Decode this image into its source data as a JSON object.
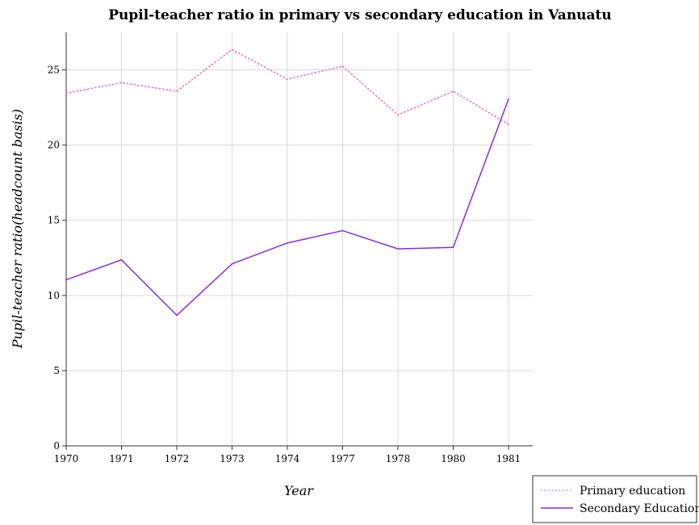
{
  "chart_data": {
    "type": "line",
    "title": "Pupil-teacher ratio in primary vs secondary education in Vanuatu",
    "xlabel": "Year",
    "ylabel": "Pupil-teacher ratio(headcount basis)",
    "categories": [
      "1970",
      "1971",
      "1972",
      "1973",
      "1974",
      "1977",
      "1978",
      "1980",
      "1981"
    ],
    "ylim": [
      0,
      27.5
    ],
    "yticks": [
      0,
      5,
      10,
      15,
      20,
      25
    ],
    "grid": true,
    "legend_position": "bottom-right",
    "series": [
      {
        "name": "Primary education",
        "color": "#e377c2",
        "dash": "dotted",
        "values": [
          23.45,
          24.15,
          23.58,
          26.35,
          24.38,
          25.24,
          22.01,
          23.58,
          21.38
        ]
      },
      {
        "name": "Secondary Education",
        "color": "#8a2be2",
        "dash": "solid",
        "values": [
          11.04,
          12.37,
          8.68,
          12.1,
          13.49,
          14.31,
          13.1,
          13.2,
          23.06
        ]
      }
    ]
  }
}
